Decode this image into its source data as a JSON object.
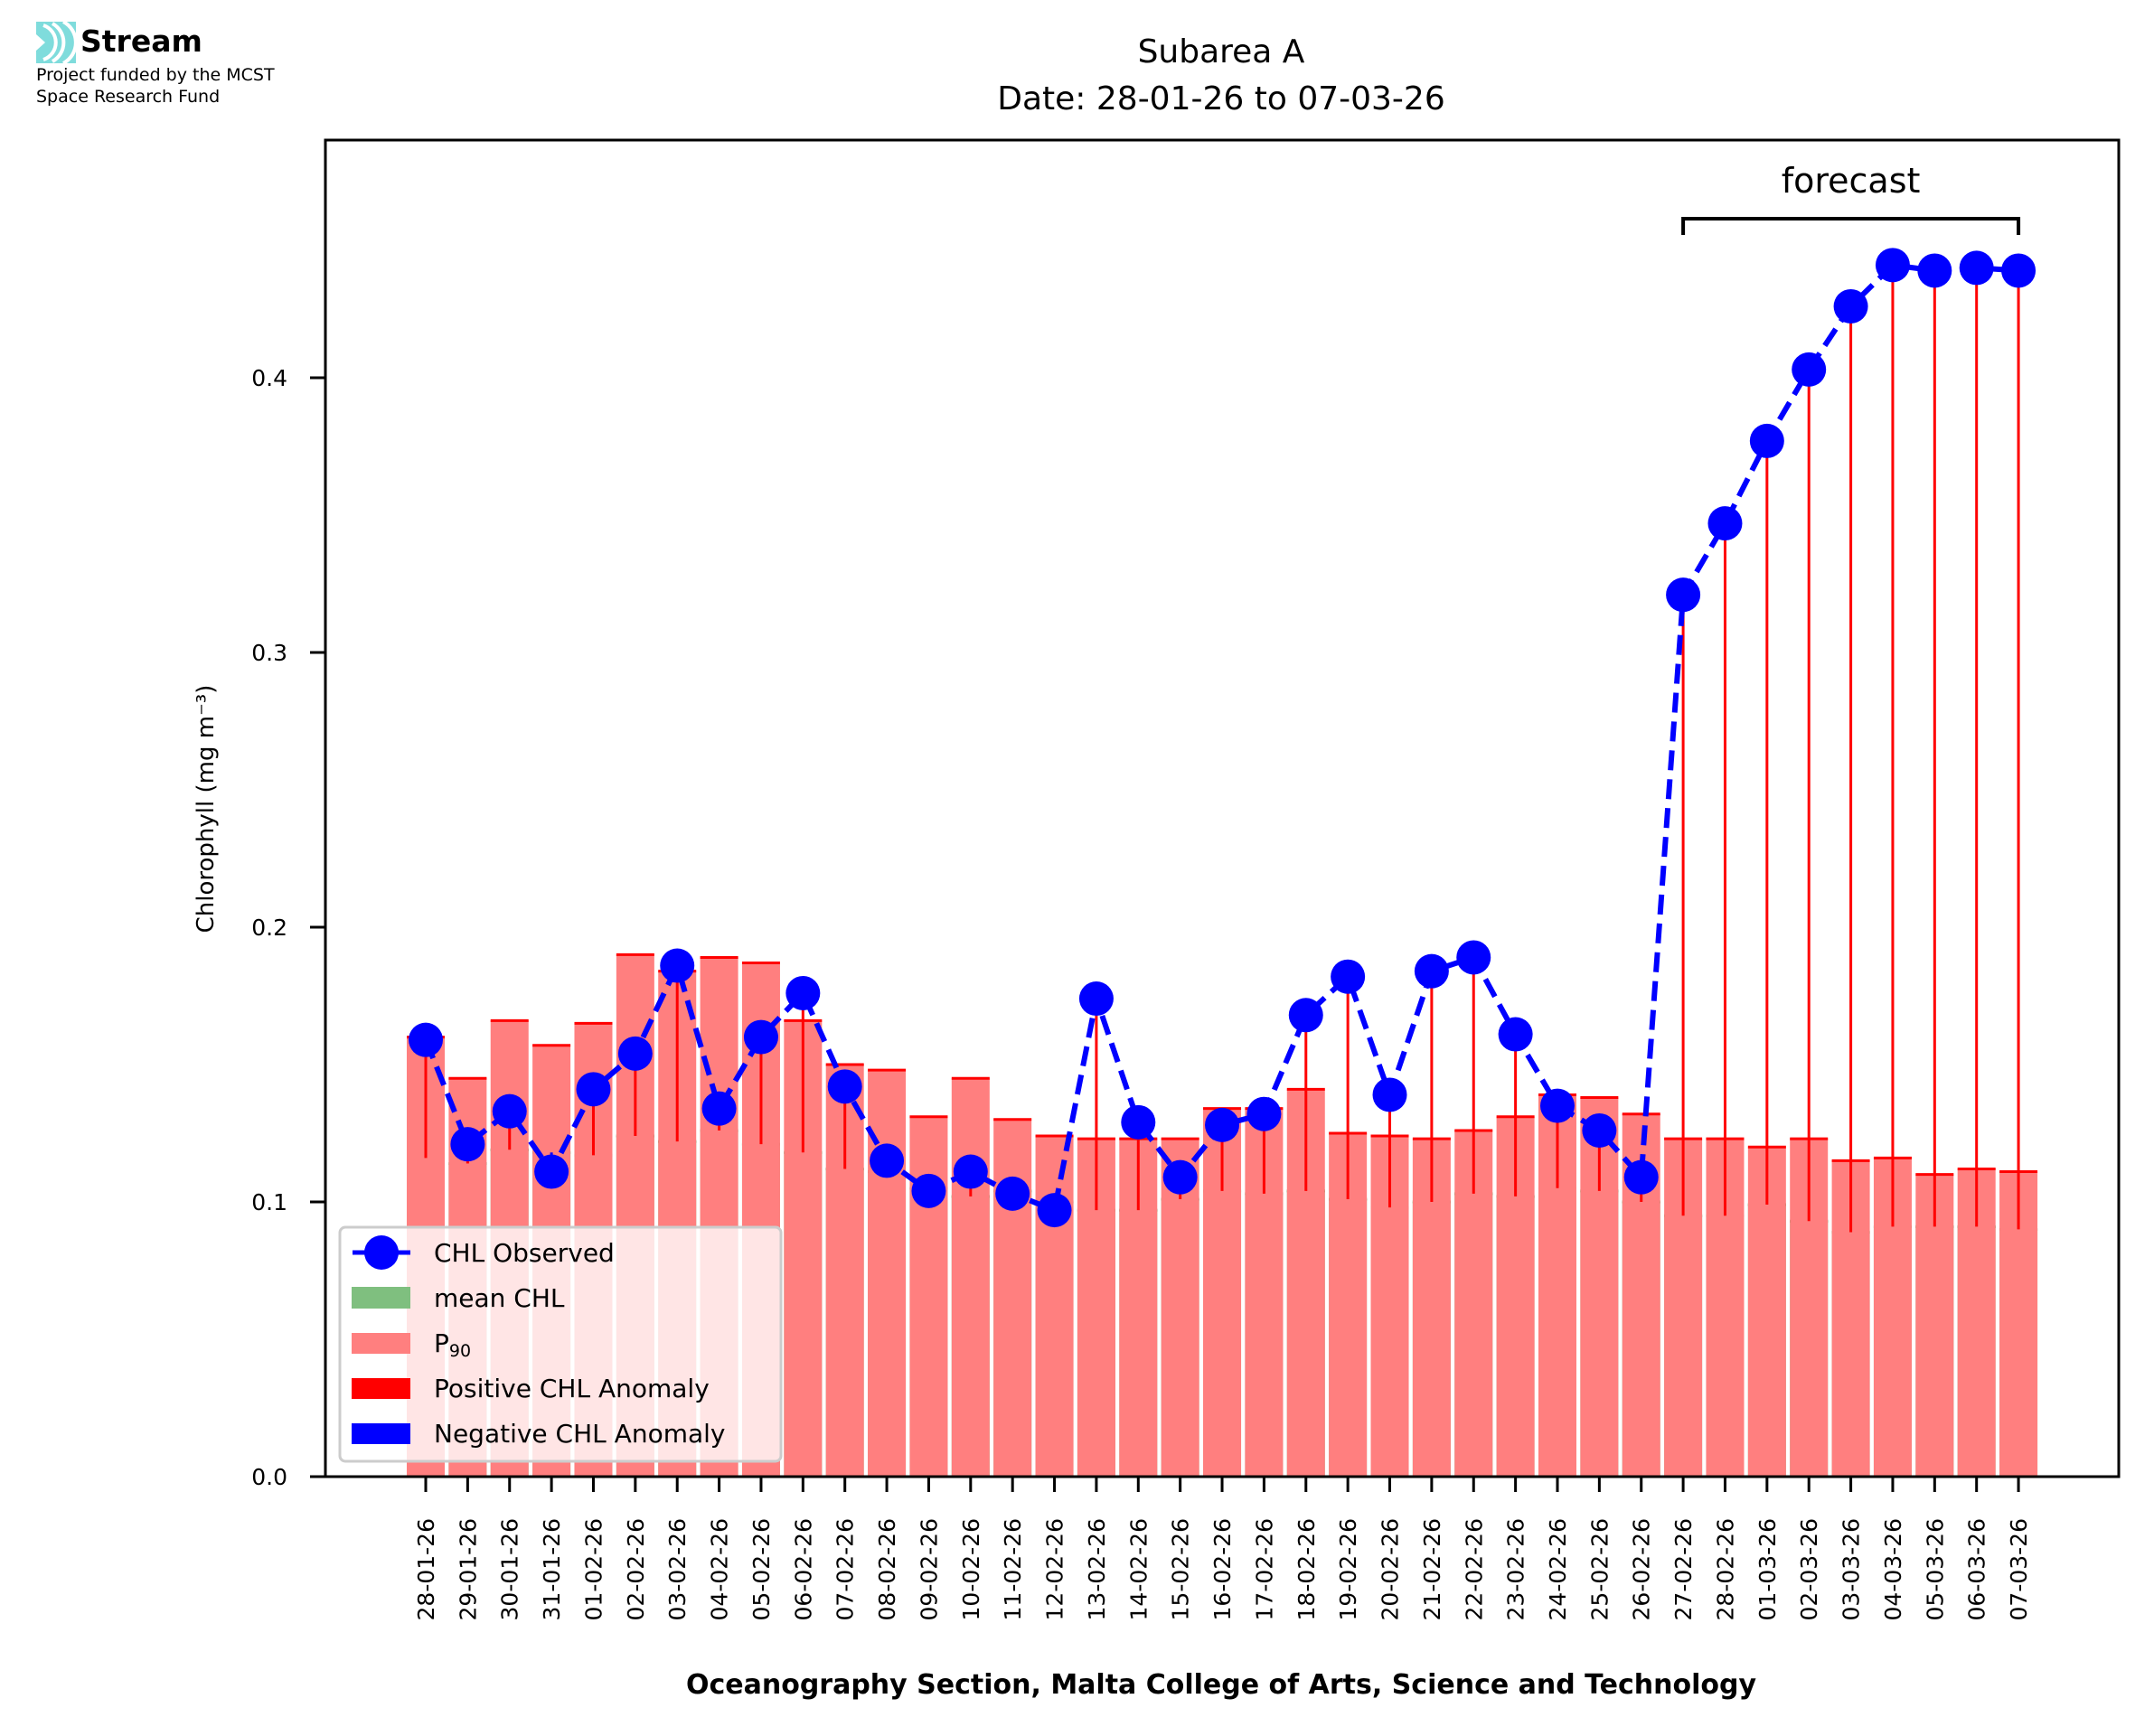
{
  "logo": {
    "name": "Stream",
    "funding_line1": "Project funded by the MCST",
    "funding_line2": "Space Research Fund",
    "icon": "stream-waves-icon",
    "icon_color": "#7fdcdc"
  },
  "chart_data": {
    "type": "bar",
    "title": "Subarea A",
    "subtitle": "Date: 28-01-26 to 07-03-26",
    "xlabel": "Oceanography Section, Malta College of Arts, Science and Technology",
    "ylabel": "Chlorophyll (mg m⁻³)",
    "ylim": [
      0.0,
      0.485
    ],
    "yticks": [
      0.0,
      0.1,
      0.2,
      0.3,
      0.4
    ],
    "ytick_labels": [
      "0.0",
      "0.1",
      "0.2",
      "0.3",
      "0.4"
    ],
    "grid": false,
    "legend_placement": "lower-left",
    "categories": [
      "28-01-26",
      "29-01-26",
      "30-01-26",
      "31-01-26",
      "01-02-26",
      "02-02-26",
      "03-02-26",
      "04-02-26",
      "05-02-26",
      "06-02-26",
      "07-02-26",
      "08-02-26",
      "09-02-26",
      "10-02-26",
      "11-02-26",
      "12-02-26",
      "13-02-26",
      "14-02-26",
      "15-02-26",
      "16-02-26",
      "17-02-26",
      "18-02-26",
      "19-02-26",
      "20-02-26",
      "21-02-26",
      "22-02-26",
      "23-02-26",
      "24-02-26",
      "25-02-26",
      "26-02-26",
      "27-02-26",
      "28-02-26",
      "01-03-26",
      "02-03-26",
      "03-03-26",
      "04-03-26",
      "05-03-26",
      "06-03-26",
      "07-03-26"
    ],
    "series": [
      {
        "name": "mean CHL",
        "kind": "bar",
        "color": "#7fbf7f",
        "edge_color": "#007f00",
        "values": [
          0.116,
          0.114,
          0.119,
          0.118,
          0.117,
          0.124,
          0.122,
          0.126,
          0.121,
          0.118,
          0.112,
          0.111,
          0.105,
          0.102,
          0.104,
          0.1,
          0.097,
          0.097,
          0.101,
          0.104,
          0.103,
          0.104,
          0.101,
          0.098,
          0.1,
          0.103,
          0.102,
          0.105,
          0.104,
          0.1,
          0.095,
          0.095,
          0.099,
          0.093,
          0.089,
          0.091,
          0.091,
          0.091,
          0.09
        ]
      },
      {
        "name": "P90",
        "legend_label_base": "P",
        "legend_label_sub": "90",
        "kind": "bar",
        "color": "#ff7f7f",
        "edge_color": "#ff0000",
        "values": [
          0.16,
          0.145,
          0.166,
          0.157,
          0.165,
          0.19,
          0.184,
          0.189,
          0.187,
          0.166,
          0.15,
          0.148,
          0.131,
          0.145,
          0.13,
          0.124,
          0.123,
          0.123,
          0.123,
          0.134,
          0.134,
          0.141,
          0.125,
          0.124,
          0.123,
          0.126,
          0.131,
          0.139,
          0.138,
          0.132,
          0.123,
          0.123,
          0.12,
          0.123,
          0.115,
          0.116,
          0.11,
          0.112,
          0.111
        ]
      },
      {
        "name": "CHL Observed",
        "kind": "line",
        "color": "#0000ff",
        "line_style": "dashed",
        "marker": "circle",
        "values": [
          0.159,
          0.121,
          0.133,
          0.111,
          0.141,
          0.154,
          0.186,
          0.134,
          0.16,
          0.176,
          0.142,
          0.115,
          0.104,
          0.111,
          0.103,
          0.097,
          0.174,
          0.129,
          0.109,
          0.128,
          0.132,
          0.168,
          0.182,
          0.139,
          0.184,
          0.189,
          0.161,
          0.135,
          0.126,
          0.109,
          0.321,
          0.347,
          0.377,
          0.403,
          0.426,
          0.441,
          0.439,
          0.44,
          0.439
        ]
      }
    ],
    "anomaly": {
      "positive_label": "Positive CHL Anomaly",
      "positive_color": "#ff0000",
      "negative_label": "Negative CHL Anomaly",
      "negative_color": "#0000ff"
    },
    "annotation": {
      "text": "forecast",
      "from_category": "27-02-26",
      "to_category": "07-03-26"
    }
  }
}
